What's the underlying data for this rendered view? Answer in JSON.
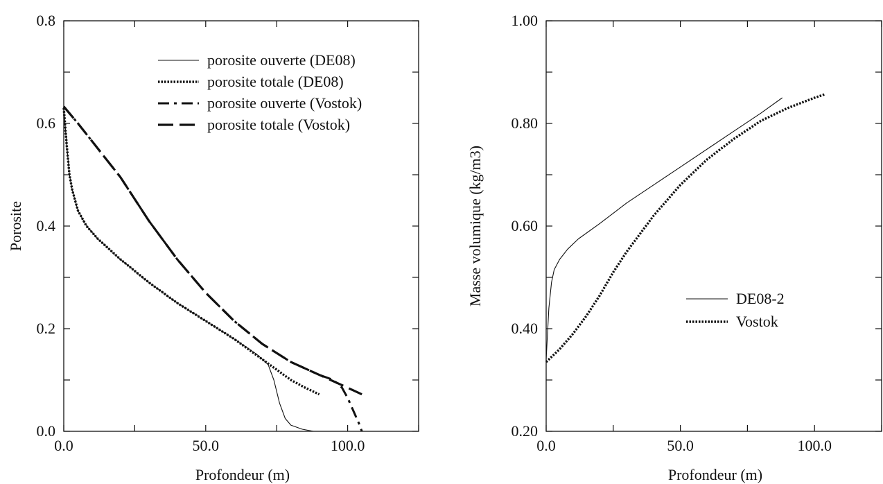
{
  "chart_data": [
    {
      "type": "line",
      "xlabel": "Profondeur (m)",
      "ylabel": "Porosite",
      "xlim": [
        0,
        125
      ],
      "ylim": [
        0,
        0.8
      ],
      "x_ticks": [
        0,
        25,
        50,
        75,
        100,
        125
      ],
      "x_tick_labels": [
        "0.0",
        "",
        "50.0",
        "",
        "100.0",
        ""
      ],
      "y_ticks": [
        0,
        0.1,
        0.2,
        0.3,
        0.4,
        0.5,
        0.6,
        0.7,
        0.8
      ],
      "y_tick_labels": [
        "0.0",
        "",
        "0.2",
        "",
        "0.4",
        "",
        "0.6",
        "",
        "0.8"
      ],
      "legend_position": "top-right",
      "series": [
        {
          "name": "porosite ouverte (DE08)",
          "style": "solid",
          "points": [
            [
              0,
              0.63
            ],
            [
              1,
              0.56
            ],
            [
              2,
              0.5
            ],
            [
              3,
              0.47
            ],
            [
              5,
              0.43
            ],
            [
              8,
              0.4
            ],
            [
              12,
              0.375
            ],
            [
              20,
              0.335
            ],
            [
              30,
              0.29
            ],
            [
              40,
              0.25
            ],
            [
              50,
              0.215
            ],
            [
              60,
              0.18
            ],
            [
              68,
              0.15
            ],
            [
              72,
              0.13
            ],
            [
              74,
              0.1
            ],
            [
              76,
              0.055
            ],
            [
              78,
              0.025
            ],
            [
              80,
              0.012
            ],
            [
              84,
              0.004
            ],
            [
              88,
              0.0
            ]
          ]
        },
        {
          "name": "porosite totale (DE08)",
          "style": "dotted",
          "points": [
            [
              0,
              0.63
            ],
            [
              1,
              0.56
            ],
            [
              2,
              0.5
            ],
            [
              3,
              0.47
            ],
            [
              5,
              0.43
            ],
            [
              8,
              0.4
            ],
            [
              12,
              0.375
            ],
            [
              20,
              0.335
            ],
            [
              30,
              0.29
            ],
            [
              40,
              0.25
            ],
            [
              50,
              0.215
            ],
            [
              60,
              0.18
            ],
            [
              70,
              0.14
            ],
            [
              75,
              0.12
            ],
            [
              80,
              0.1
            ],
            [
              85,
              0.085
            ],
            [
              90,
              0.072
            ]
          ]
        },
        {
          "name": "porosite ouverte (Vostok)",
          "style": "dash-dot",
          "points": [
            [
              0,
              0.633
            ],
            [
              5,
              0.6
            ],
            [
              10,
              0.565
            ],
            [
              20,
              0.495
            ],
            [
              30,
              0.41
            ],
            [
              40,
              0.335
            ],
            [
              50,
              0.27
            ],
            [
              60,
              0.215
            ],
            [
              70,
              0.17
            ],
            [
              80,
              0.135
            ],
            [
              90,
              0.11
            ],
            [
              95,
              0.1
            ],
            [
              98,
              0.085
            ],
            [
              100,
              0.065
            ],
            [
              102,
              0.04
            ],
            [
              104,
              0.015
            ],
            [
              105,
              0.0
            ]
          ]
        },
        {
          "name": "porosite totale (Vostok)",
          "style": "long-dash",
          "points": [
            [
              0,
              0.633
            ],
            [
              5,
              0.6
            ],
            [
              10,
              0.565
            ],
            [
              20,
              0.495
            ],
            [
              30,
              0.41
            ],
            [
              40,
              0.335
            ],
            [
              50,
              0.27
            ],
            [
              60,
              0.215
            ],
            [
              70,
              0.17
            ],
            [
              80,
              0.135
            ],
            [
              90,
              0.11
            ],
            [
              98,
              0.09
            ],
            [
              105,
              0.072
            ]
          ]
        }
      ]
    },
    {
      "type": "line",
      "xlabel": "Profondeur (m)",
      "ylabel": "Masse volumique (kg/m3)",
      "xlim": [
        0,
        125
      ],
      "ylim": [
        0.2,
        1.0
      ],
      "x_ticks": [
        0,
        25,
        50,
        75,
        100,
        125
      ],
      "x_tick_labels": [
        "0.0",
        "",
        "50.0",
        "",
        "100.0",
        ""
      ],
      "y_ticks": [
        0.2,
        0.3,
        0.4,
        0.5,
        0.6,
        0.7,
        0.8,
        0.9,
        1.0
      ],
      "y_tick_labels": [
        "0.20",
        "",
        "0.40",
        "",
        "0.60",
        "",
        "0.80",
        "",
        "1.00"
      ],
      "legend_position": "center-right",
      "series": [
        {
          "name": "DE08-2",
          "style": "solid",
          "points": [
            [
              0,
              0.34
            ],
            [
              1,
              0.44
            ],
            [
              2,
              0.49
            ],
            [
              3,
              0.515
            ],
            [
              5,
              0.535
            ],
            [
              8,
              0.555
            ],
            [
              12,
              0.575
            ],
            [
              20,
              0.605
            ],
            [
              30,
              0.645
            ],
            [
              40,
              0.68
            ],
            [
              50,
              0.715
            ],
            [
              60,
              0.75
            ],
            [
              70,
              0.785
            ],
            [
              80,
              0.82
            ],
            [
              88,
              0.85
            ]
          ]
        },
        {
          "name": "Vostok",
          "style": "dotted",
          "points": [
            [
              0,
              0.335
            ],
            [
              5,
              0.36
            ],
            [
              10,
              0.39
            ],
            [
              15,
              0.425
            ],
            [
              20,
              0.465
            ],
            [
              25,
              0.51
            ],
            [
              30,
              0.55
            ],
            [
              40,
              0.62
            ],
            [
              50,
              0.68
            ],
            [
              60,
              0.73
            ],
            [
              70,
              0.77
            ],
            [
              80,
              0.805
            ],
            [
              90,
              0.83
            ],
            [
              100,
              0.85
            ],
            [
              104,
              0.857
            ]
          ]
        }
      ]
    }
  ]
}
